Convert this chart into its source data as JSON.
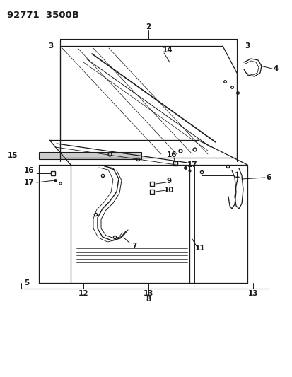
{
  "title": "92771  3500B",
  "bg_color": "#ffffff",
  "line_color": "#1a1a1a",
  "title_fontsize": 10,
  "label_fontsize": 7.5,
  "fig_width": 4.14,
  "fig_height": 5.33,
  "dpi": 100
}
